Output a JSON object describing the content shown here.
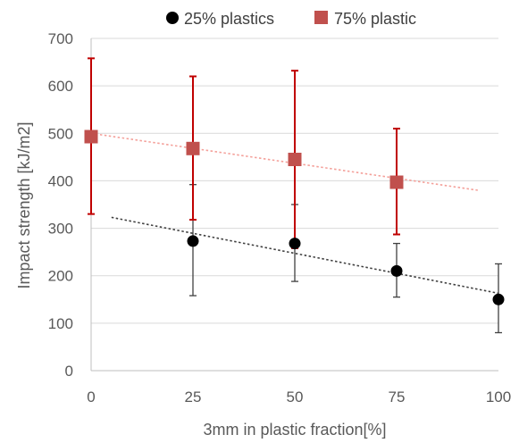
{
  "chart_data": {
    "type": "scatter",
    "title": "",
    "xlabel": "3mm in plastic fraction[%]",
    "ylabel": "Impact strength [kJ/m2]",
    "xlim": [
      0,
      100
    ],
    "ylim": [
      0,
      700
    ],
    "x_ticks": [
      0,
      25,
      50,
      75,
      100
    ],
    "y_ticks": [
      0,
      100,
      200,
      300,
      400,
      500,
      600,
      700
    ],
    "grid": "horizontal",
    "legend_position": "top",
    "series": [
      {
        "name": "25% plastics",
        "color": "#000000",
        "marker": "circle",
        "x": [
          25,
          50,
          75,
          100
        ],
        "y": [
          273,
          268,
          210,
          150
        ],
        "err_low": [
          158,
          188,
          155,
          80
        ],
        "err_high": [
          392,
          350,
          268,
          225
        ],
        "error_color": "#404040",
        "trendline": {
          "x": [
            5,
            100
          ],
          "y": [
            323,
            163
          ],
          "color": "#404040"
        }
      },
      {
        "name": "75% plastic",
        "color": "#c0504d",
        "marker": "square",
        "x": [
          0,
          25,
          50,
          75
        ],
        "y": [
          493,
          468,
          445,
          397
        ],
        "err_low": [
          330,
          318,
          258,
          287
        ],
        "err_high": [
          658,
          620,
          632,
          510
        ],
        "error_color": "#c00000",
        "trendline": {
          "x": [
            0,
            95
          ],
          "y": [
            500,
            380
          ],
          "color": "#f4a09a"
        }
      }
    ]
  }
}
